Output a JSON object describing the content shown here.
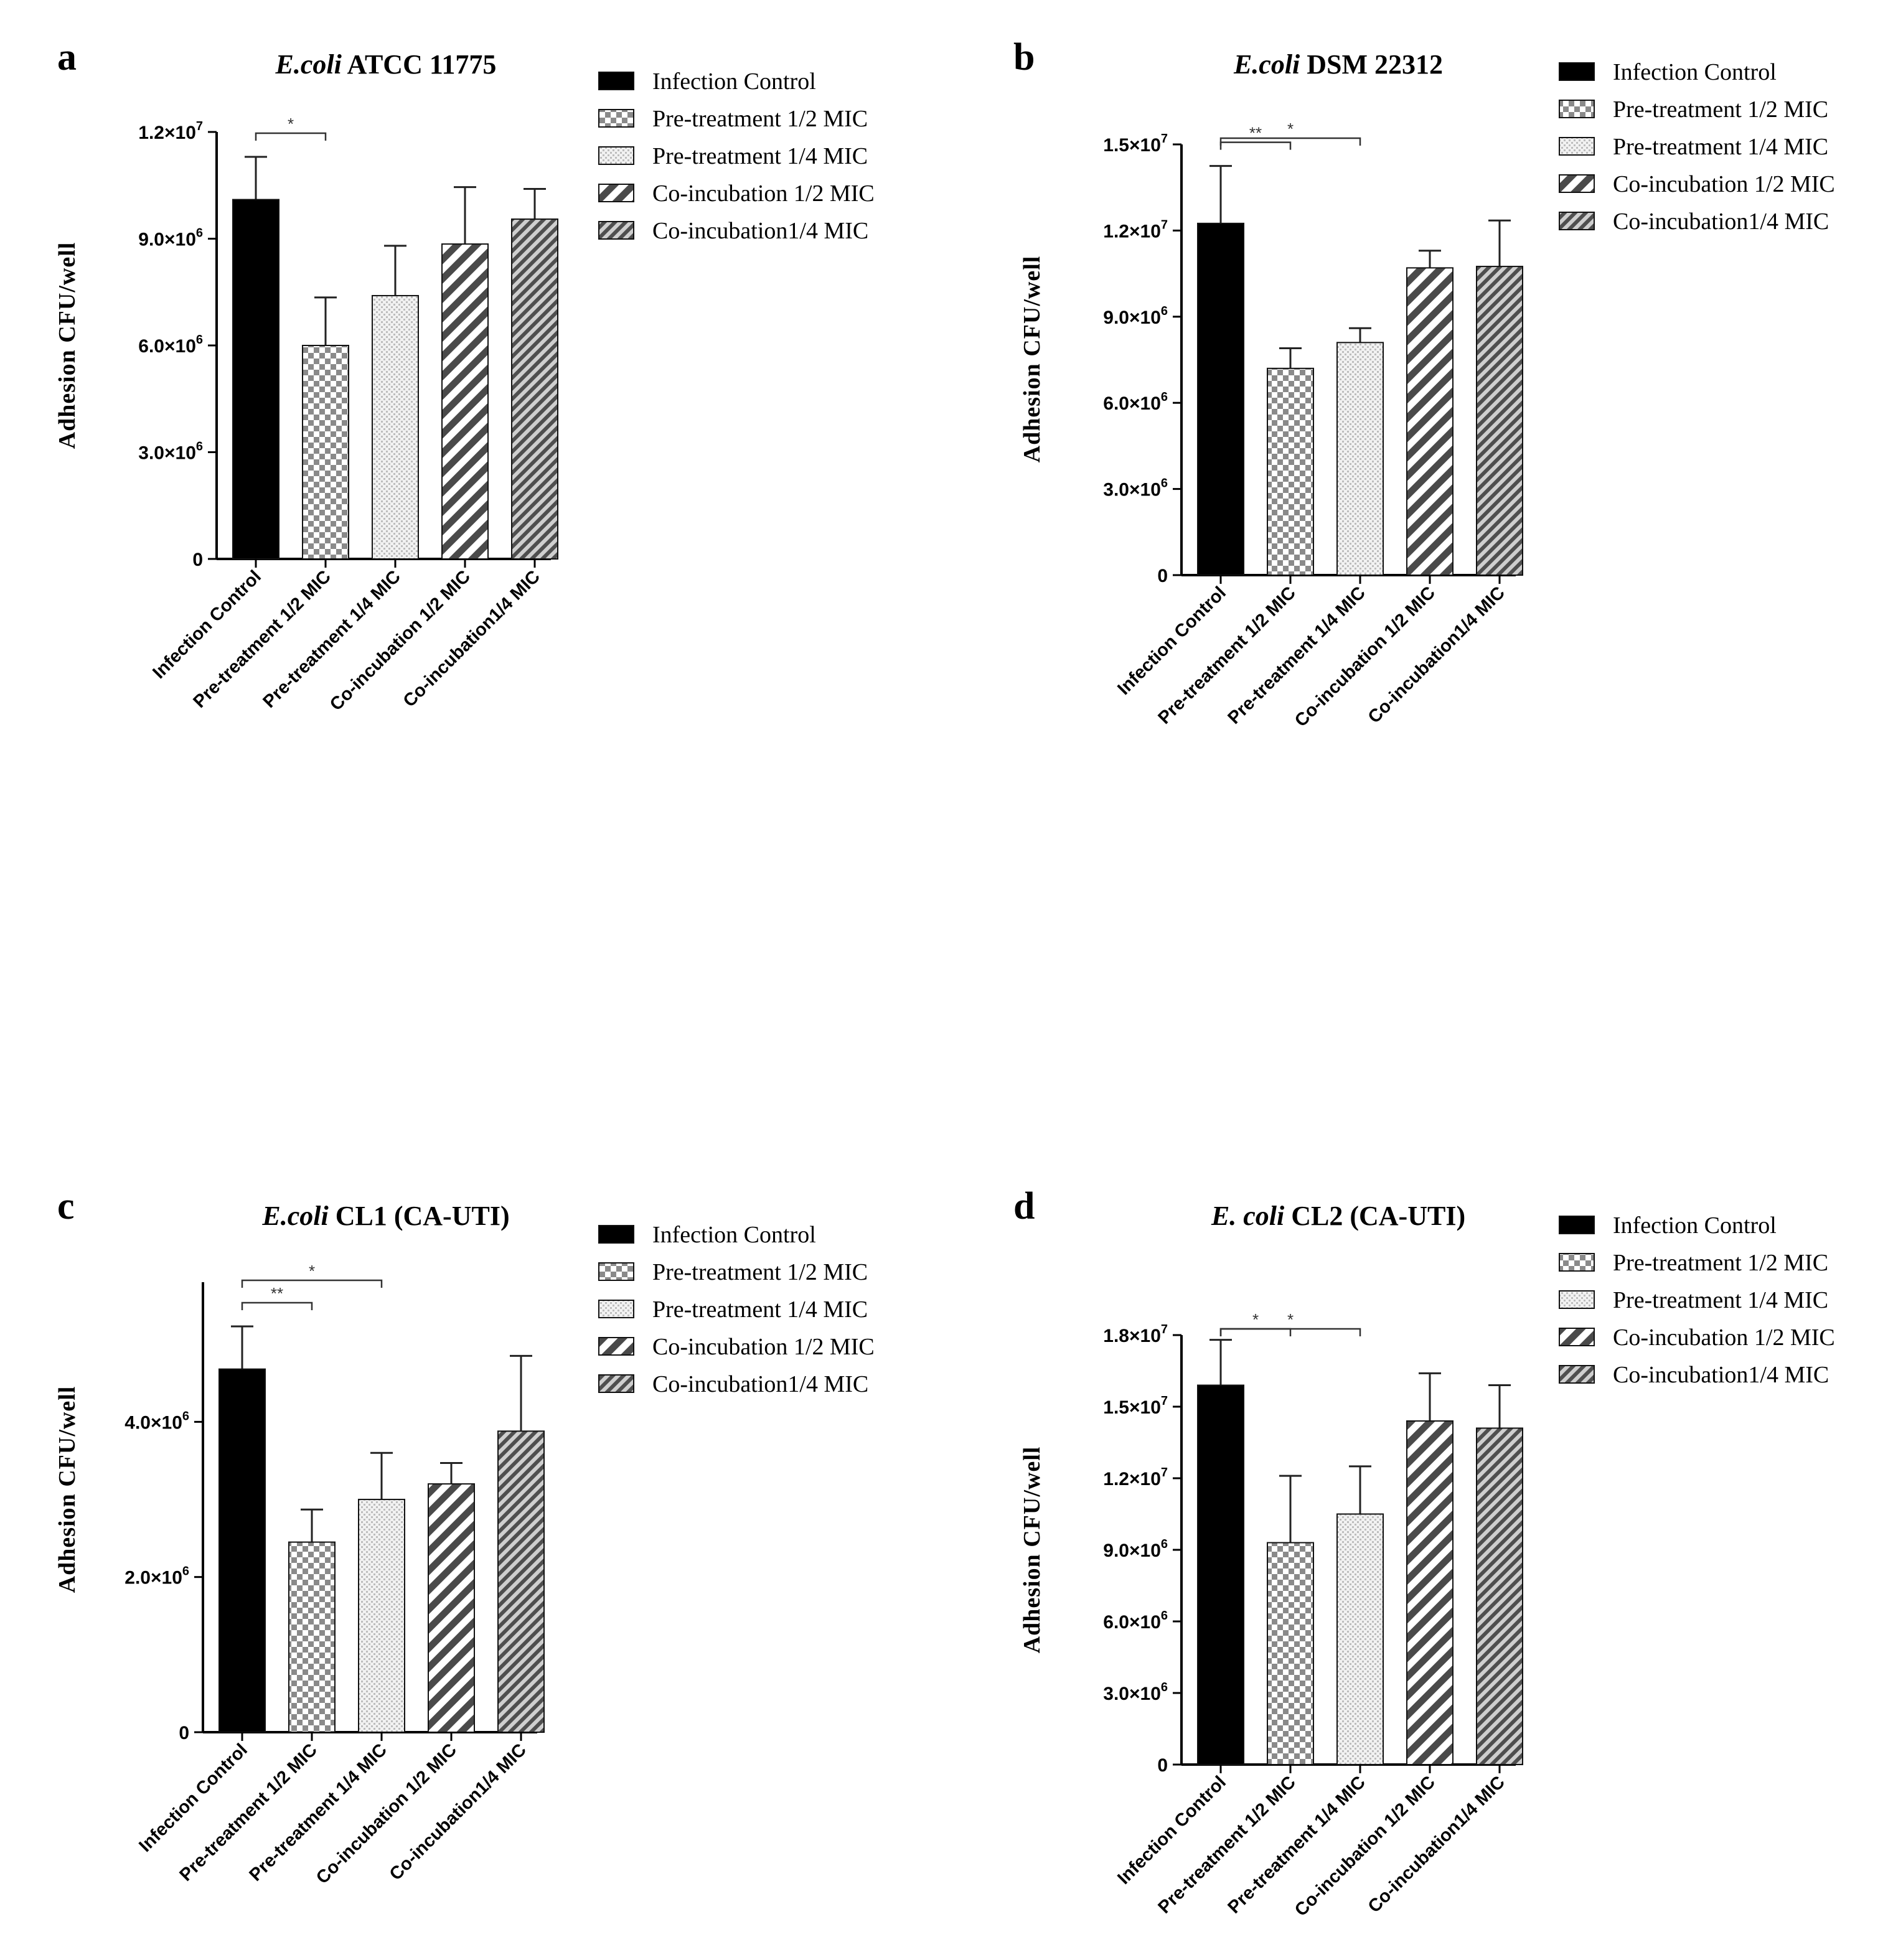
{
  "chart_data": [
    {
      "type": "bar",
      "panel_label": "a",
      "title_italic": "E.coli",
      "title_rest": " ATCC 11775",
      "ylabel": "Adhesion CFU/well",
      "ylim": [
        0,
        12000000
      ],
      "yticks": [
        {
          "value": 0,
          "mant": "0",
          "exp": ""
        },
        {
          "value": 3000000,
          "mant": "3.0×10",
          "exp": "6"
        },
        {
          "value": 6000000,
          "mant": "6.0×10",
          "exp": "6"
        },
        {
          "value": 9000000,
          "mant": "9.0×10",
          "exp": "6"
        },
        {
          "value": 12000000,
          "mant": "1.2×10",
          "exp": "7"
        }
      ],
      "draw_top_tick": true,
      "categories": [
        "Infection Control",
        "Pre-treatment 1/2 MIC",
        "Pre-treatment 1/4 MIC",
        "Co-incubation 1/2 MIC",
        "Co-incubation1/4 MIC"
      ],
      "values": [
        10100000,
        6000000,
        7400000,
        8850000,
        9550000
      ],
      "errors": [
        1200000,
        1350000,
        1400000,
        1600000,
        850000
      ],
      "significance": [
        {
          "from": 0,
          "to": 1,
          "label": "*"
        }
      ],
      "legend": [
        "Infection Control",
        "Pre-treatment 1/2 MIC",
        "Pre-treatment 1/4 MIC",
        "Co-incubation 1/2 MIC",
        "Co-incubation1/4 MIC"
      ]
    },
    {
      "type": "bar",
      "panel_label": "b",
      "title_italic": "E.coli",
      "title_rest": " DSM 22312",
      "ylabel": "Adhesion CFU/well",
      "ylim": [
        0,
        15000000
      ],
      "yticks": [
        {
          "value": 0,
          "mant": "0",
          "exp": ""
        },
        {
          "value": 3000000,
          "mant": "3.0×10",
          "exp": "6"
        },
        {
          "value": 6000000,
          "mant": "6.0×10",
          "exp": "6"
        },
        {
          "value": 9000000,
          "mant": "9.0×10",
          "exp": "6"
        },
        {
          "value": 12000000,
          "mant": "1.2×10",
          "exp": "7"
        },
        {
          "value": 15000000,
          "mant": "1.5×10",
          "exp": "7"
        }
      ],
      "draw_top_tick": true,
      "categories": [
        "Infection Control",
        "Pre-treatment 1/2 MIC",
        "Pre-treatment 1/4 MIC",
        "Co-incubation 1/2 MIC",
        "Co-incubation1/4 MIC"
      ],
      "values": [
        12250000,
        7200000,
        8100000,
        10700000,
        10750000
      ],
      "errors": [
        2000000,
        700000,
        500000,
        600000,
        1600000
      ],
      "significance": [
        {
          "from": 0,
          "to": 1,
          "label": "**"
        },
        {
          "from": 0,
          "to": 2,
          "label": "*"
        }
      ],
      "legend": [
        "Infection Control",
        "Pre-treatment 1/2 MIC",
        "Pre-treatment 1/4 MIC",
        "Co-incubation 1/2 MIC",
        "Co-incubation1/4 MIC"
      ]
    },
    {
      "type": "bar",
      "panel_label": "c",
      "title_italic": "E.coli",
      "title_rest": " CL1 (CA-UTI)",
      "ylabel": "Adhesion CFU/well",
      "ylim": [
        0,
        5800000
      ],
      "yticks": [
        {
          "value": 0,
          "mant": "0",
          "exp": ""
        },
        {
          "value": 2000000,
          "mant": "2.0×10",
          "exp": "6"
        },
        {
          "value": 4000000,
          "mant": "4.0×10",
          "exp": "6"
        }
      ],
      "draw_top_tick": false,
      "categories": [
        "Infection Control",
        "Pre-treatment 1/2 MIC",
        "Pre-treatment 1/4 MIC",
        "Co-incubation 1/2 MIC",
        "Co-incubation1/4 MIC"
      ],
      "values": [
        4680000,
        2450000,
        3000000,
        3200000,
        3880000
      ],
      "errors": [
        550000,
        420000,
        600000,
        270000,
        970000
      ],
      "significance": [
        {
          "from": 0,
          "to": 1,
          "label": "**"
        },
        {
          "from": 0,
          "to": 2,
          "label": "*"
        }
      ],
      "legend": [
        "Infection Control",
        "Pre-treatment 1/2 MIC",
        "Pre-treatment 1/4 MIC",
        "Co-incubation 1/2 MIC",
        "Co-incubation1/4 MIC"
      ]
    },
    {
      "type": "bar",
      "panel_label": "d",
      "title_italic": "E. coli",
      "title_rest": " CL2 (CA-UTI)",
      "ylabel": "Adhesion CFU/well",
      "ylim": [
        0,
        18000000
      ],
      "yticks": [
        {
          "value": 0,
          "mant": "0",
          "exp": ""
        },
        {
          "value": 3000000,
          "mant": "3.0×10",
          "exp": "6"
        },
        {
          "value": 6000000,
          "mant": "6.0×10",
          "exp": "6"
        },
        {
          "value": 9000000,
          "mant": "9.0×10",
          "exp": "6"
        },
        {
          "value": 12000000,
          "mant": "1.2×10",
          "exp": "7"
        },
        {
          "value": 15000000,
          "mant": "1.5×10",
          "exp": "7"
        },
        {
          "value": 18000000,
          "mant": "1.8×10",
          "exp": "7"
        }
      ],
      "draw_top_tick": true,
      "categories": [
        "Infection Control",
        "Pre-treatment 1/2 MIC",
        "Pre-treatment 1/4 MIC",
        "Co-incubation 1/2 MIC",
        "Co-incubation1/4 MIC"
      ],
      "values": [
        15900000,
        9300000,
        10500000,
        14400000,
        14100000
      ],
      "errors": [
        1900000,
        2800000,
        2000000,
        2000000,
        1800000
      ],
      "significance": [
        {
          "from": 0,
          "to": 1,
          "label": "*"
        },
        {
          "from": 0,
          "to": 2,
          "label": "*"
        }
      ],
      "legend": [
        "Infection Control",
        "Pre-treatment 1/2 MIC",
        "Pre-treatment 1/4 MIC",
        "Co-incubation 1/2 MIC",
        "Co-incubation1/4 MIC"
      ]
    }
  ]
}
